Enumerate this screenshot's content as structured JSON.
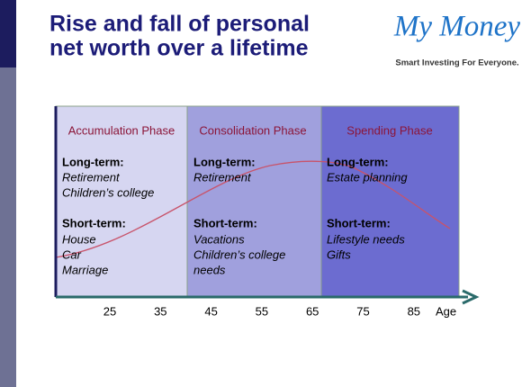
{
  "header": {
    "title_lines": [
      "Rise and fall of personal",
      "net worth over a lifetime"
    ]
  },
  "logo": {
    "name": "My Money",
    "tagline": "Smart Investing For Everyone."
  },
  "phases": [
    {
      "title": "Accumulation Phase",
      "long_term_label": "Long-term:",
      "long_term": [
        "Retirement",
        "Children’s college"
      ],
      "short_term_label": "Short-term:",
      "short_term": [
        "House",
        "Car",
        "Marriage"
      ]
    },
    {
      "title": "Consolidation Phase",
      "long_term_label": "Long-term:",
      "long_term": [
        "Retirement"
      ],
      "short_term_label": "Short-term:",
      "short_term": [
        "Vacations",
        "Children’s college",
        "needs"
      ]
    },
    {
      "title": "Spending Phase",
      "long_term_label": "Long-term:",
      "long_term": [
        "Estate planning"
      ],
      "short_term_label": "Short-term:",
      "short_term": [
        "Lifestyle needs",
        "Gifts"
      ]
    }
  ],
  "axis": {
    "ticks": [
      "25",
      "35",
      "45",
      "55",
      "65",
      "75",
      "85"
    ],
    "label": "Age"
  }
}
